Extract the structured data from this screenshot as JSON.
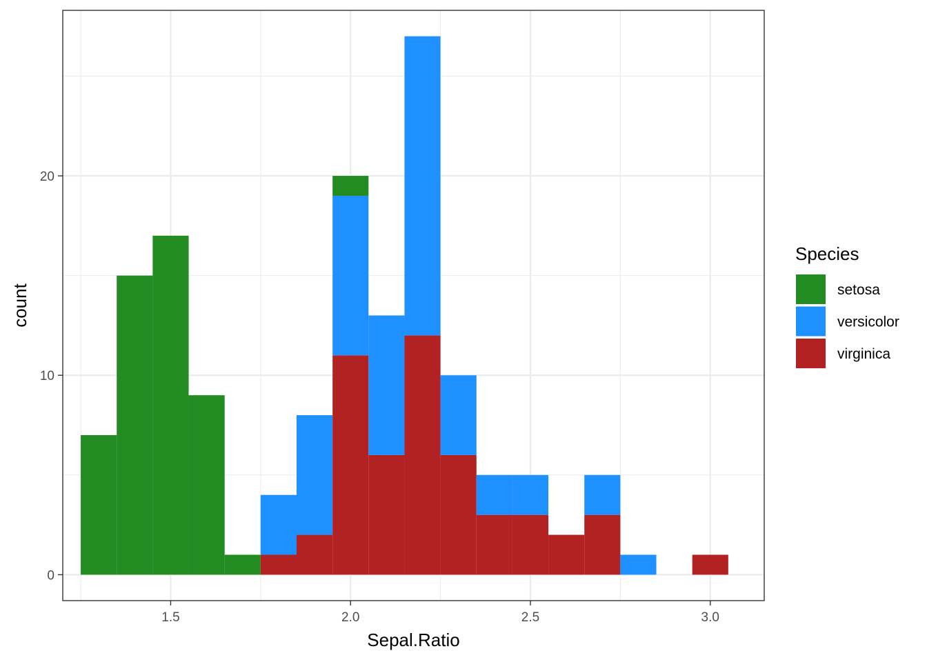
{
  "chart_data": {
    "type": "bar",
    "subtype": "stacked-histogram",
    "xlabel": "Sepal.Ratio",
    "ylabel": "count",
    "xlim": [
      1.2,
      3.15
    ],
    "ylim": [
      -1.3,
      28.3
    ],
    "x_ticks": [
      1.5,
      2.0,
      2.5,
      3.0
    ],
    "x_tick_labels": [
      "1.5",
      "2.0",
      "2.5",
      "3.0"
    ],
    "y_ticks": [
      0,
      10,
      20
    ],
    "y_tick_labels": [
      "0",
      "10",
      "20"
    ],
    "bin_width": 0.1,
    "bin_centers": [
      1.3,
      1.4,
      1.5,
      1.6,
      1.7,
      1.8,
      1.9,
      2.0,
      2.1,
      2.2,
      2.3,
      2.4,
      2.5,
      2.6,
      2.7,
      2.8,
      2.9,
      3.0
    ],
    "stack_order": [
      "virginica",
      "versicolor",
      "setosa"
    ],
    "series": [
      {
        "name": "setosa",
        "color": "#228B22",
        "values": [
          7,
          15,
          17,
          9,
          1,
          0,
          0,
          1,
          0,
          0,
          0,
          0,
          0,
          0,
          0,
          0,
          0,
          0
        ]
      },
      {
        "name": "versicolor",
        "color": "#1E90FF",
        "values": [
          0,
          0,
          0,
          0,
          0,
          3,
          6,
          8,
          7,
          15,
          4,
          2,
          2,
          0,
          2,
          1,
          0,
          0
        ]
      },
      {
        "name": "virginica",
        "color": "#B22222",
        "values": [
          0,
          0,
          0,
          0,
          0,
          1,
          2,
          11,
          6,
          12,
          6,
          3,
          3,
          2,
          3,
          0,
          0,
          1
        ]
      }
    ],
    "grid": true,
    "legend": {
      "title": "Species",
      "position": "right",
      "entries": [
        "setosa",
        "versicolor",
        "virginica"
      ]
    },
    "theme": {
      "panel_border": "#333333",
      "grid_color": "#ebebeb"
    }
  }
}
